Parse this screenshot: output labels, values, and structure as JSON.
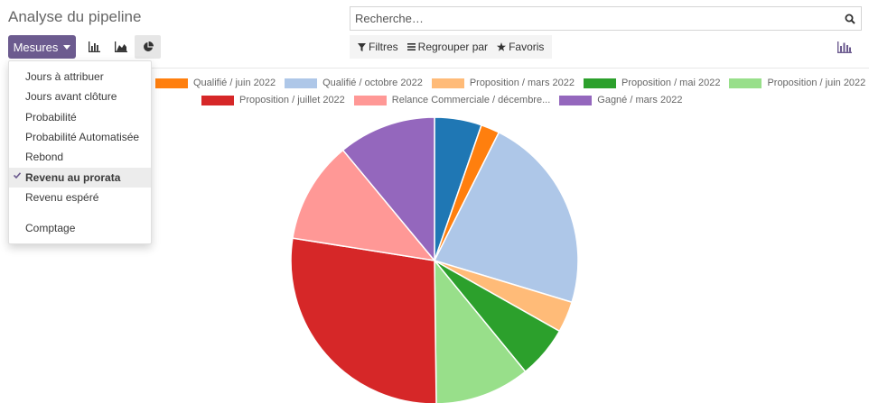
{
  "header": {
    "title": "Analyse du pipeline",
    "search_placeholder": "Recherche…"
  },
  "toolbar": {
    "mesures_label": "Mesures",
    "views": [
      {
        "name": "bar-chart-icon",
        "active": false
      },
      {
        "name": "area-chart-icon",
        "active": false
      },
      {
        "name": "pie-chart-icon",
        "active": true
      }
    ],
    "filters_label": "Filtres",
    "groupby_label": "Regrouper par",
    "favorites_label": "Favoris"
  },
  "measures_menu": {
    "items": [
      {
        "label": "Jours à attribuer",
        "selected": false
      },
      {
        "label": "Jours avant clôture",
        "selected": false
      },
      {
        "label": "Probabilité",
        "selected": false
      },
      {
        "label": "Probabilité Automatisée",
        "selected": false
      },
      {
        "label": "Rebond",
        "selected": false
      },
      {
        "label": "Revenu au prorata",
        "selected": true
      },
      {
        "label": "Revenu espéré",
        "selected": false
      }
    ],
    "count_label": "Comptage"
  },
  "chart_data": {
    "type": "pie",
    "legend_row1": [
      {
        "label": "Qualifié / juin 2022",
        "color": "#ff7f0e"
      },
      {
        "label": "Qualifié / octobre 2022",
        "color": "#aec7e8"
      },
      {
        "label": "Proposition / mars 2022",
        "color": "#ffbb78"
      },
      {
        "label": "Proposition / mai 2022",
        "color": "#2ca02c"
      },
      {
        "label": "Proposition / juin 2022",
        "color": "#98df8a"
      }
    ],
    "legend_row2": [
      {
        "label": "Proposition / juillet 2022",
        "color": "#d62728"
      },
      {
        "label": "Relance Commerciale / décembre...",
        "color": "#ff9896"
      },
      {
        "label": "Gagné / mars 2022",
        "color": "#9467bd"
      }
    ],
    "slices": [
      {
        "color": "#1f77b4",
        "value": 5.3
      },
      {
        "color": "#ff7f0e",
        "value": 2.1
      },
      {
        "color": "#aec7e8",
        "value": 22.3
      },
      {
        "color": "#ffbb78",
        "value": 3.5
      },
      {
        "color": "#2ca02c",
        "value": 5.9
      },
      {
        "color": "#98df8a",
        "value": 10.7
      },
      {
        "color": "#d62728",
        "value": 27.7
      },
      {
        "color": "#ff9896",
        "value": 11.5
      },
      {
        "color": "#9467bd",
        "value": 11.0
      }
    ]
  }
}
